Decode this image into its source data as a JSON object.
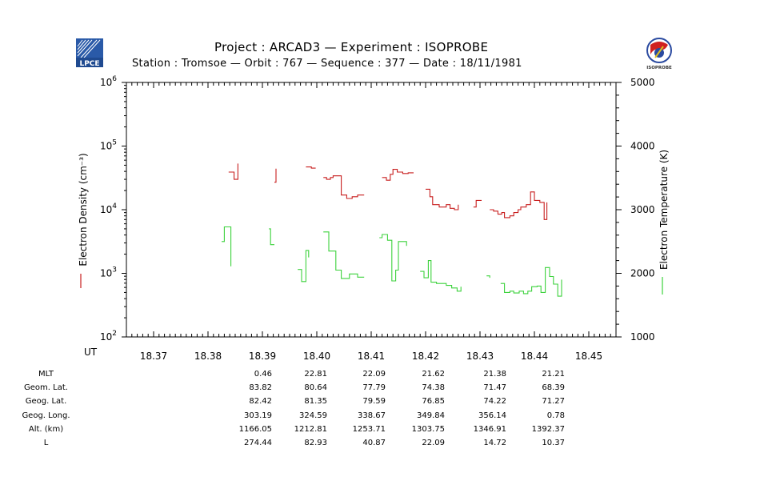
{
  "header": {
    "title": "Project : ARCAD3  —  Experiment : ISOPROBE",
    "subtitle": "Station : Tromsoe  —  Orbit :    767  —  Sequence :   377  —  Date : 18/11/1981",
    "left_logo_text": "LPCE",
    "right_logo_text": "ISOPROBE"
  },
  "colors": {
    "density": "#c81e1e",
    "temperature": "#3cd23c",
    "axes": "#000000"
  },
  "chart_data": {
    "type": "line",
    "ylabel_left": "Electron Density (cm⁻³)",
    "ylabel_right": "Electron Temperature (K)",
    "xlabel": "UT",
    "xlim": [
      18.365,
      18.455
    ],
    "x_ticks": [
      "18.37",
      "18.38",
      "18.39",
      "18.40",
      "18.41",
      "18.42",
      "18.43",
      "18.44",
      "18.45"
    ],
    "ylim_left_log10": [
      2,
      6
    ],
    "y_ticks_left": [
      {
        "base": "10",
        "exp": "2"
      },
      {
        "base": "10",
        "exp": "3"
      },
      {
        "base": "10",
        "exp": "4"
      },
      {
        "base": "10",
        "exp": "5"
      },
      {
        "base": "10",
        "exp": "6"
      }
    ],
    "ylim_right": [
      1000,
      5000
    ],
    "y_ticks_right": [
      "1000",
      "2000",
      "3000",
      "4000",
      "5000"
    ],
    "series": [
      {
        "name": "Electron Density",
        "axis": "left",
        "segments": [
          [
            [
              18.3838,
              39000
            ],
            [
              18.3848,
              39000
            ],
            [
              18.3848,
              30000
            ],
            [
              18.3855,
              30000
            ],
            [
              18.3855,
              53000
            ]
          ],
          [
            [
              18.3922,
              27000
            ],
            [
              18.3925,
              27000
            ],
            [
              18.3925,
              44000
            ]
          ],
          [
            [
              18.398,
              47000
            ],
            [
              18.399,
              47000
            ],
            [
              18.399,
              45000
            ],
            [
              18.3998,
              45000
            ]
          ],
          [
            [
              18.4012,
              32000
            ],
            [
              18.4018,
              32000
            ],
            [
              18.4018,
              30000
            ],
            [
              18.4025,
              30000
            ],
            [
              18.4025,
              32000
            ],
            [
              18.403,
              32000
            ],
            [
              18.403,
              34000
            ],
            [
              18.4045,
              34000
            ],
            [
              18.4045,
              17000
            ],
            [
              18.4055,
              17000
            ],
            [
              18.4055,
              15000
            ],
            [
              18.4065,
              15000
            ],
            [
              18.4065,
              16000
            ],
            [
              18.4075,
              16000
            ],
            [
              18.4075,
              17000
            ],
            [
              18.4087,
              17000
            ]
          ],
          [
            [
              18.412,
              32000
            ],
            [
              18.4128,
              32000
            ],
            [
              18.4128,
              29000
            ],
            [
              18.4135,
              29000
            ],
            [
              18.4135,
              36000
            ],
            [
              18.414,
              36000
            ],
            [
              18.414,
              43000
            ],
            [
              18.4148,
              43000
            ],
            [
              18.4148,
              39000
            ],
            [
              18.4158,
              39000
            ],
            [
              18.4158,
              37000
            ],
            [
              18.4168,
              37000
            ],
            [
              18.4168,
              38000
            ],
            [
              18.4178,
              38000
            ]
          ],
          [
            [
              18.42,
              21000
            ],
            [
              18.4208,
              21000
            ],
            [
              18.4208,
              16000
            ],
            [
              18.4213,
              16000
            ],
            [
              18.4213,
              12000
            ],
            [
              18.4225,
              12000
            ],
            [
              18.4225,
              11000
            ],
            [
              18.4238,
              11000
            ],
            [
              18.4238,
              12000
            ],
            [
              18.4245,
              12000
            ],
            [
              18.4245,
              10500
            ],
            [
              18.4253,
              10500
            ],
            [
              18.4253,
              10000
            ],
            [
              18.426,
              10000
            ],
            [
              18.426,
              12000
            ]
          ],
          [
            [
              18.4288,
              11000
            ],
            [
              18.4293,
              11000
            ],
            [
              18.4293,
              14000
            ],
            [
              18.4303,
              14000
            ]
          ],
          [
            [
              18.4318,
              10000
            ],
            [
              18.4325,
              10000
            ],
            [
              18.4325,
              9500
            ],
            [
              18.4333,
              9500
            ],
            [
              18.4333,
              8500
            ],
            [
              18.434,
              8500
            ],
            [
              18.434,
              9000
            ],
            [
              18.4345,
              9000
            ],
            [
              18.4345,
              7500
            ],
            [
              18.4355,
              7500
            ],
            [
              18.4355,
              8000
            ],
            [
              18.4362,
              8000
            ],
            [
              18.4362,
              9000
            ],
            [
              18.437,
              9000
            ],
            [
              18.437,
              10000
            ],
            [
              18.4375,
              10000
            ],
            [
              18.4375,
              11000
            ],
            [
              18.4385,
              11000
            ],
            [
              18.4385,
              12000
            ],
            [
              18.4393,
              12000
            ],
            [
              18.4393,
              19000
            ],
            [
              18.44,
              19000
            ],
            [
              18.44,
              14000
            ],
            [
              18.441,
              14000
            ],
            [
              18.441,
              13000
            ],
            [
              18.4418,
              13000
            ],
            [
              18.4418,
              7000
            ],
            [
              18.4423,
              7000
            ],
            [
              18.4423,
              13000
            ]
          ]
        ]
      },
      {
        "name": "Electron Temperature",
        "axis": "right",
        "segments": [
          [
            [
              18.3825,
              2500
            ],
            [
              18.383,
              2500
            ],
            [
              18.383,
              2730
            ],
            [
              18.3842,
              2730
            ],
            [
              18.3842,
              2110
            ]
          ],
          [
            [
              18.3912,
              2700
            ],
            [
              18.3915,
              2700
            ],
            [
              18.3915,
              2450
            ],
            [
              18.3922,
              2450
            ]
          ],
          [
            [
              18.3965,
              2060
            ],
            [
              18.3972,
              2060
            ],
            [
              18.3972,
              1870
            ],
            [
              18.398,
              1870
            ],
            [
              18.398,
              2360
            ],
            [
              18.3985,
              2360
            ],
            [
              18.3985,
              2250
            ]
          ],
          [
            [
              18.4012,
              2650
            ],
            [
              18.4022,
              2650
            ],
            [
              18.4022,
              2350
            ],
            [
              18.4035,
              2350
            ],
            [
              18.4035,
              2050
            ],
            [
              18.4045,
              2050
            ],
            [
              18.4045,
              1920
            ],
            [
              18.406,
              1920
            ],
            [
              18.406,
              1990
            ],
            [
              18.4075,
              1990
            ],
            [
              18.4075,
              1940
            ],
            [
              18.4087,
              1940
            ]
          ],
          [
            [
              18.4115,
              2560
            ],
            [
              18.412,
              2560
            ],
            [
              18.412,
              2610
            ],
            [
              18.413,
              2610
            ],
            [
              18.413,
              2520
            ],
            [
              18.4138,
              2520
            ],
            [
              18.4138,
              1880
            ],
            [
              18.4145,
              1880
            ],
            [
              18.4145,
              2050
            ],
            [
              18.415,
              2050
            ],
            [
              18.415,
              2500
            ],
            [
              18.4165,
              2500
            ],
            [
              18.4165,
              2430
            ]
          ],
          [
            [
              18.419,
              2030
            ],
            [
              18.4197,
              2030
            ],
            [
              18.4197,
              1930
            ],
            [
              18.4205,
              1930
            ],
            [
              18.4205,
              2200
            ],
            [
              18.421,
              2200
            ],
            [
              18.421,
              1860
            ],
            [
              18.422,
              1860
            ],
            [
              18.422,
              1840
            ],
            [
              18.4238,
              1840
            ],
            [
              18.4238,
              1810
            ],
            [
              18.4248,
              1810
            ],
            [
              18.4248,
              1770
            ],
            [
              18.4258,
              1770
            ],
            [
              18.4258,
              1720
            ],
            [
              18.4265,
              1720
            ],
            [
              18.4265,
              1790
            ]
          ],
          [
            [
              18.4312,
              1960
            ],
            [
              18.4318,
              1960
            ],
            [
              18.4318,
              1930
            ]
          ],
          [
            [
              18.4338,
              1840
            ],
            [
              18.4345,
              1840
            ],
            [
              18.4345,
              1700
            ],
            [
              18.4355,
              1700
            ],
            [
              18.4355,
              1720
            ],
            [
              18.4362,
              1720
            ],
            [
              18.4362,
              1690
            ],
            [
              18.4372,
              1690
            ],
            [
              18.4372,
              1720
            ],
            [
              18.438,
              1720
            ],
            [
              18.438,
              1680
            ],
            [
              18.4388,
              1680
            ],
            [
              18.4388,
              1720
            ],
            [
              18.4395,
              1720
            ],
            [
              18.4395,
              1790
            ],
            [
              18.4405,
              1790
            ],
            [
              18.4405,
              1800
            ],
            [
              18.4412,
              1800
            ],
            [
              18.4412,
              1700
            ],
            [
              18.442,
              1700
            ],
            [
              18.442,
              2090
            ],
            [
              18.4428,
              2090
            ],
            [
              18.4428,
              1950
            ],
            [
              18.4435,
              1950
            ],
            [
              18.4435,
              1830
            ],
            [
              18.4443,
              1830
            ],
            [
              18.4443,
              1640
            ],
            [
              18.445,
              1640
            ],
            [
              18.445,
              1900
            ]
          ]
        ]
      }
    ]
  },
  "ephemeris": {
    "rows": [
      {
        "label": "MLT",
        "values": [
          "0.46",
          "22.81",
          "22.09",
          "21.62",
          "21.38",
          "21.21"
        ]
      },
      {
        "label": "Geom. Lat.",
        "values": [
          "83.82",
          "80.64",
          "77.79",
          "74.38",
          "71.47",
          "68.39"
        ]
      },
      {
        "label": "Geog. Lat.",
        "values": [
          "82.42",
          "81.35",
          "79.59",
          "76.85",
          "74.22",
          "71.27"
        ]
      },
      {
        "label": "Geog. Long.",
        "values": [
          "303.19",
          "324.59",
          "338.67",
          "349.84",
          "356.14",
          "0.78"
        ]
      },
      {
        "label": "Alt. (km)",
        "values": [
          "1166.05",
          "1212.81",
          "1253.71",
          "1303.75",
          "1346.91",
          "1392.37"
        ]
      },
      {
        "label": "L",
        "values": [
          "274.44",
          "82.93",
          "40.87",
          "22.09",
          "14.72",
          "10.37"
        ]
      }
    ]
  }
}
